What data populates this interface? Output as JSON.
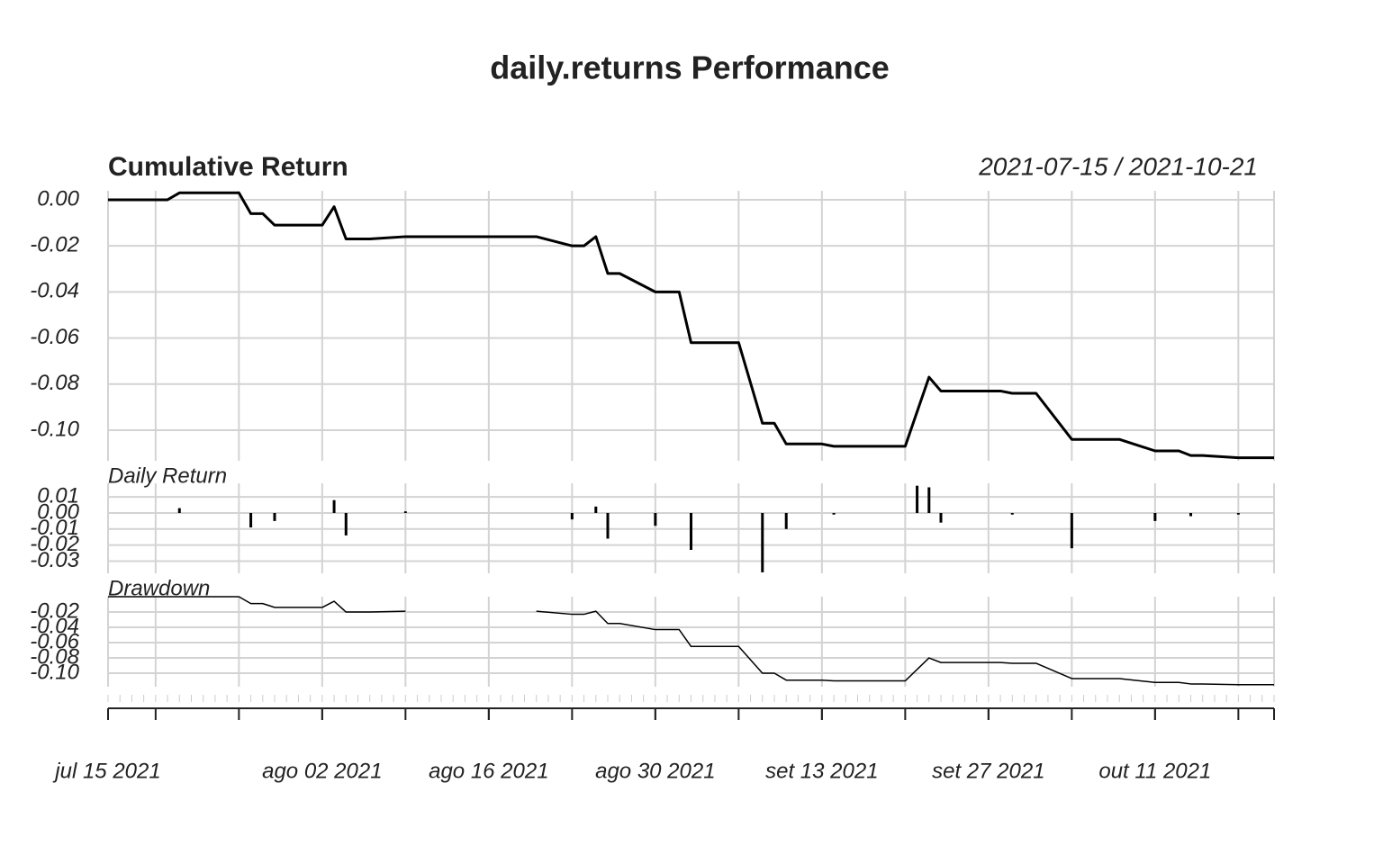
{
  "title": "daily.returns Performance",
  "chart_data": [
    {
      "type": "line",
      "title": "Cumulative Return",
      "subtitle": "2021-07-15 / 2021-10-21",
      "xlim": [
        "2021-07-15",
        "2021-10-21"
      ],
      "ylim": [
        -0.1133,
        0.0039
      ],
      "yticks": [
        {
          "value": 0,
          "label": "0.00"
        },
        -0.02,
        -0.04,
        -0.06,
        -0.08,
        {
          "value": -0.1,
          "label": "-0.10"
        }
      ],
      "grid": true,
      "x": [
        "2021-07-15",
        "2021-07-16",
        "2021-07-19",
        "2021-07-20",
        "2021-07-21",
        "2021-07-22",
        "2021-07-23",
        "2021-07-26",
        "2021-07-27",
        "2021-07-28",
        "2021-07-29",
        "2021-07-30",
        "2021-08-02",
        "2021-08-03",
        "2021-08-04",
        "2021-08-05",
        "2021-08-06",
        "2021-08-09",
        "2021-08-10",
        "2021-08-11",
        "2021-08-12",
        "2021-08-13",
        "2021-08-16",
        "2021-08-17",
        "2021-08-18",
        "2021-08-19",
        "2021-08-20",
        "2021-08-23",
        "2021-08-24",
        "2021-08-25",
        "2021-08-26",
        "2021-08-27",
        "2021-08-30",
        "2021-08-31",
        "2021-09-01",
        "2021-09-02",
        "2021-09-03",
        "2021-09-06",
        "2021-09-08",
        "2021-09-09",
        "2021-09-10",
        "2021-09-13",
        "2021-09-14",
        "2021-09-15",
        "2021-09-16",
        "2021-09-17",
        "2021-09-20",
        "2021-09-21",
        "2021-09-22",
        "2021-09-23",
        "2021-09-24",
        "2021-09-27",
        "2021-09-28",
        "2021-09-29",
        "2021-09-30",
        "2021-10-01",
        "2021-10-04",
        "2021-10-05",
        "2021-10-06",
        "2021-10-07",
        "2021-10-08",
        "2021-10-11",
        "2021-10-13",
        "2021-10-14",
        "2021-10-15",
        "2021-10-18",
        "2021-10-19",
        "2021-10-20",
        "2021-10-21"
      ],
      "series": [
        {
          "color": "#000000",
          "values": [
            0,
            0,
            0,
            0,
            0.003,
            0.003,
            0.003,
            0.003,
            -0.006,
            -0.006,
            -0.011,
            -0.011,
            -0.011,
            -0.003,
            -0.017,
            -0.017,
            -0.017,
            -0.016,
            -0.016,
            -0.016,
            -0.016,
            -0.016,
            -0.016,
            -0.016,
            -0.016,
            -0.016,
            -0.016,
            -0.02,
            -0.02,
            -0.016,
            -0.032,
            -0.032,
            -0.04,
            -0.04,
            -0.04,
            -0.062,
            -0.062,
            -0.062,
            -0.097,
            -0.097,
            -0.106,
            -0.106,
            -0.107,
            -0.107,
            -0.107,
            -0.107,
            -0.107,
            -0.092,
            -0.077,
            -0.083,
            -0.083,
            -0.083,
            -0.083,
            -0.084,
            -0.084,
            -0.084,
            -0.104,
            -0.104,
            -0.104,
            -0.104,
            -0.104,
            -0.109,
            -0.109,
            -0.111,
            -0.111,
            -0.112,
            -0.112,
            -0.112,
            -0.112
          ]
        }
      ]
    },
    {
      "type": "bar",
      "title": "Daily Return",
      "xlim": [
        "2021-07-15",
        "2021-10-21"
      ],
      "ylim": [
        -0.0376,
        0.0185
      ],
      "yticks": [
        0.01,
        {
          "value": 0,
          "label": "0.00"
        },
        -0.01,
        -0.02,
        -0.03
      ],
      "grid": true,
      "x": [
        "2021-07-15",
        "2021-07-16",
        "2021-07-19",
        "2021-07-20",
        "2021-07-21",
        "2021-07-22",
        "2021-07-23",
        "2021-07-26",
        "2021-07-27",
        "2021-07-28",
        "2021-07-29",
        "2021-07-30",
        "2021-08-02",
        "2021-08-03",
        "2021-08-04",
        "2021-08-05",
        "2021-08-06",
        "2021-08-09",
        "2021-08-10",
        "2021-08-11",
        "2021-08-12",
        "2021-08-13",
        "2021-08-16",
        "2021-08-17",
        "2021-08-18",
        "2021-08-19",
        "2021-08-20",
        "2021-08-23",
        "2021-08-24",
        "2021-08-25",
        "2021-08-26",
        "2021-08-27",
        "2021-08-30",
        "2021-08-31",
        "2021-09-01",
        "2021-09-02",
        "2021-09-03",
        "2021-09-06",
        "2021-09-08",
        "2021-09-09",
        "2021-09-10",
        "2021-09-13",
        "2021-09-14",
        "2021-09-15",
        "2021-09-16",
        "2021-09-17",
        "2021-09-20",
        "2021-09-21",
        "2021-09-22",
        "2021-09-23",
        "2021-09-24",
        "2021-09-27",
        "2021-09-28",
        "2021-09-29",
        "2021-09-30",
        "2021-10-01",
        "2021-10-04",
        "2021-10-05",
        "2021-10-06",
        "2021-10-07",
        "2021-10-08",
        "2021-10-11",
        "2021-10-13",
        "2021-10-14",
        "2021-10-15",
        "2021-10-18",
        "2021-10-19",
        "2021-10-20",
        "2021-10-21"
      ],
      "series": [
        {
          "color": "#000000",
          "values": [
            0,
            0,
            0,
            0,
            0.003,
            0,
            0,
            0,
            -0.009,
            0,
            -0.005,
            0,
            0,
            0.008,
            -0.014,
            0,
            0,
            0.001,
            0,
            0,
            0,
            0,
            0,
            0,
            0,
            0,
            0,
            -0.004,
            0,
            0.004,
            -0.016,
            0,
            -0.008,
            0,
            0,
            -0.023,
            0,
            0,
            -0.037,
            0,
            -0.01,
            0,
            -0.001,
            0,
            0,
            0,
            0,
            0.017,
            0.016,
            -0.006,
            0,
            0,
            0,
            -0.001,
            0,
            0,
            -0.022,
            0,
            0,
            0,
            0,
            -0.005,
            0,
            -0.002,
            0,
            -0.001,
            0,
            0,
            0
          ]
        }
      ]
    },
    {
      "type": "line",
      "title": "Drawdown",
      "xlim": [
        "2021-07-15",
        "2021-10-21"
      ],
      "ylim": [
        -0.1176,
        0
      ],
      "yticks": [
        -0.02,
        -0.04,
        -0.06,
        -0.08,
        {
          "value": -0.1,
          "label": "-0.10"
        }
      ],
      "grid": true,
      "xticks": [
        {
          "value": "2021-07-15",
          "label": "jul 15 2021"
        },
        {
          "value": "2021-08-02",
          "label": "ago 02 2021"
        },
        {
          "value": "2021-08-16",
          "label": "ago 16 2021"
        },
        {
          "value": "2021-08-30",
          "label": "ago 30 2021"
        },
        {
          "value": "2021-09-13",
          "label": "set 13 2021"
        },
        {
          "value": "2021-09-27",
          "label": "set 27 2021"
        },
        {
          "value": "2021-10-11",
          "label": "out 11 2021"
        }
      ],
      "x": [
        "2021-07-15",
        "2021-07-16",
        "2021-07-19",
        "2021-07-20",
        "2021-07-21",
        "2021-07-22",
        "2021-07-23",
        "2021-07-26",
        "2021-07-27",
        "2021-07-28",
        "2021-07-29",
        "2021-07-30",
        "2021-08-02",
        "2021-08-03",
        "2021-08-04",
        "2021-08-05",
        "2021-08-06",
        "2021-08-09",
        "2021-08-10",
        "2021-08-11",
        "2021-08-12",
        "2021-08-13",
        "2021-08-16",
        "2021-08-17",
        "2021-08-18",
        "2021-08-19",
        "2021-08-20",
        "2021-08-23",
        "2021-08-24",
        "2021-08-25",
        "2021-08-26",
        "2021-08-27",
        "2021-08-30",
        "2021-08-31",
        "2021-09-01",
        "2021-09-02",
        "2021-09-03",
        "2021-09-06",
        "2021-09-08",
        "2021-09-09",
        "2021-09-10",
        "2021-09-13",
        "2021-09-14",
        "2021-09-15",
        "2021-09-16",
        "2021-09-17",
        "2021-09-20",
        "2021-09-21",
        "2021-09-22",
        "2021-09-23",
        "2021-09-24",
        "2021-09-27",
        "2021-09-28",
        "2021-09-29",
        "2021-09-30",
        "2021-10-01",
        "2021-10-04",
        "2021-10-05",
        "2021-10-06",
        "2021-10-07",
        "2021-10-08",
        "2021-10-11",
        "2021-10-13",
        "2021-10-14",
        "2021-10-15",
        "2021-10-18",
        "2021-10-19",
        "2021-10-20",
        "2021-10-21"
      ],
      "series": [
        {
          "color": "#000000",
          "values": [
            0,
            0,
            0,
            0,
            0,
            0,
            0,
            0,
            -0.009,
            -0.009,
            -0.014,
            -0.014,
            -0.014,
            -0.006,
            -0.02,
            -0.02,
            -0.02,
            -0.019,
            null,
            null,
            null,
            null,
            null,
            null,
            null,
            null,
            -0.019,
            -0.023,
            -0.023,
            -0.019,
            -0.035,
            -0.035,
            -0.043,
            -0.043,
            -0.043,
            -0.065,
            -0.065,
            -0.065,
            -0.1,
            -0.1,
            -0.109,
            -0.109,
            -0.11,
            -0.11,
            -0.11,
            -0.11,
            -0.11,
            -0.095,
            -0.08,
            -0.086,
            -0.086,
            -0.086,
            -0.086,
            -0.087,
            -0.087,
            -0.087,
            -0.107,
            -0.107,
            -0.107,
            -0.107,
            -0.107,
            -0.112,
            -0.112,
            -0.114,
            -0.114,
            -0.115,
            -0.115,
            -0.115,
            -0.115
          ]
        }
      ]
    }
  ]
}
